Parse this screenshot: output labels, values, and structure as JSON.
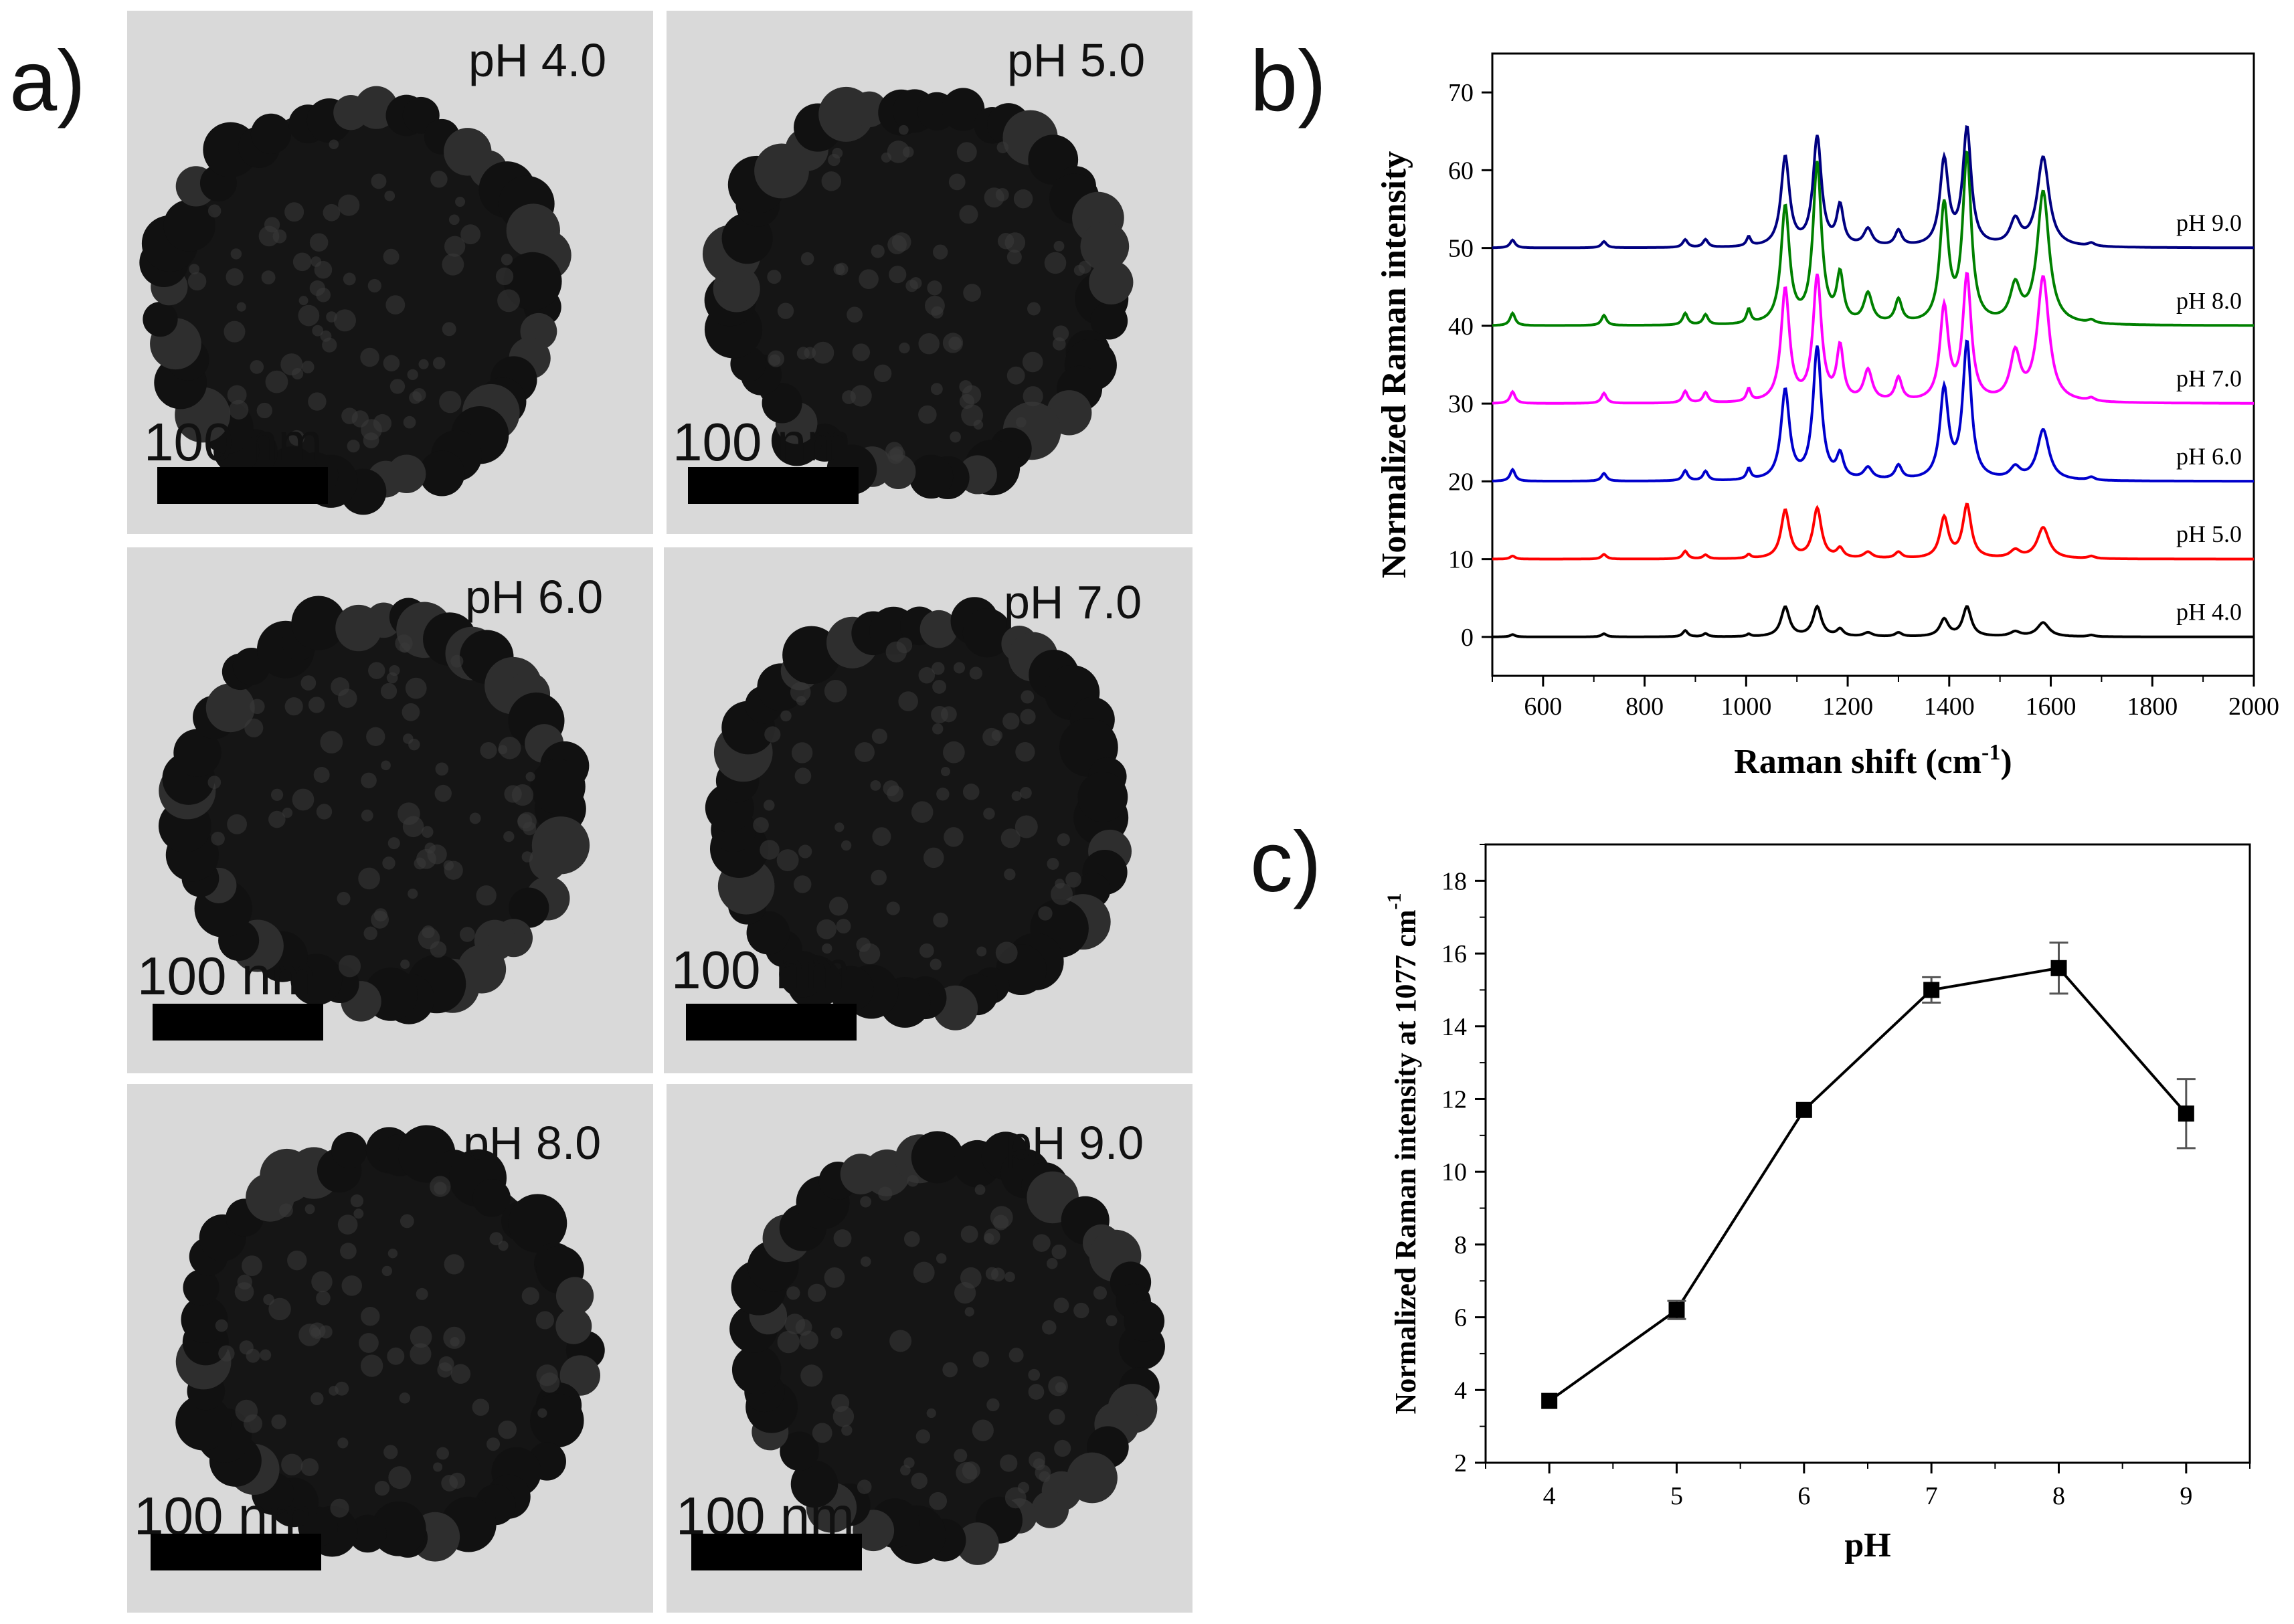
{
  "panels": {
    "a": "a)",
    "b": "b)",
    "c": "c)"
  },
  "tem": {
    "scale_bar_label": "100 nm",
    "images": [
      {
        "label": "pH 4.0"
      },
      {
        "label": "pH 5.0"
      },
      {
        "label": "pH 6.0"
      },
      {
        "label": "pH 7.0"
      },
      {
        "label": "pH 8.0"
      },
      {
        "label": "pH 9.0"
      }
    ]
  },
  "chart_data": [
    {
      "id": "b",
      "type": "line",
      "title": "",
      "xlabel": "Raman shift (cm",
      "xlabel_sup": "-1",
      "xlabel_close": ")",
      "ylabel": "Normalized Raman intensity",
      "xlim": [
        500,
        2000
      ],
      "ylim": [
        -5,
        75
      ],
      "xticks": [
        600,
        800,
        1000,
        1200,
        1400,
        1600,
        1800,
        2000
      ],
      "yticks": [
        0,
        10,
        20,
        30,
        40,
        50,
        60,
        70
      ],
      "peaks_cm-1": [
        540,
        720,
        880,
        920,
        1005,
        1077,
        1140,
        1185,
        1240,
        1300,
        1390,
        1435,
        1530,
        1585,
        1680
      ],
      "series": [
        {
          "name": "pH 4.0",
          "color": "#000000",
          "offset": 0,
          "peak_heights": [
            0.3,
            0.4,
            0.8,
            0.4,
            0.3,
            3.8,
            3.8,
            0.9,
            0.5,
            0.5,
            2.2,
            3.8,
            0.6,
            1.8,
            0.2
          ]
        },
        {
          "name": "pH 5.0",
          "color": "#ff0000",
          "offset": 10,
          "peak_heights": [
            0.4,
            0.6,
            1.0,
            0.5,
            0.5,
            6.2,
            6.4,
            1.2,
            0.8,
            0.8,
            5.2,
            6.8,
            1.0,
            4.0,
            0.3
          ]
        },
        {
          "name": "pH 6.0",
          "color": "#0000cc",
          "offset": 20,
          "peak_heights": [
            1.5,
            1.0,
            1.3,
            1.2,
            1.4,
            11.5,
            17.0,
            3.0,
            1.5,
            1.8,
            11.5,
            17.5,
            1.5,
            6.5,
            0.4
          ]
        },
        {
          "name": "pH 7.0",
          "color": "#ff00ff",
          "offset": 30,
          "peak_heights": [
            1.5,
            1.3,
            1.5,
            1.3,
            1.6,
            14.5,
            16.0,
            6.8,
            4.0,
            3.0,
            12.0,
            16.0,
            6.0,
            16.0,
            0.4
          ]
        },
        {
          "name": "pH 8.0",
          "color": "#008000",
          "offset": 40,
          "peak_heights": [
            1.6,
            1.3,
            1.5,
            1.3,
            1.8,
            15.0,
            20.5,
            6.0,
            3.8,
            3.0,
            15.0,
            21.5,
            4.6,
            17.0,
            0.4
          ]
        },
        {
          "name": "pH 9.0",
          "color": "#000080",
          "offset": 50,
          "peak_heights": [
            1.0,
            0.8,
            1.0,
            1.0,
            1.2,
            11.5,
            14.0,
            5.0,
            2.2,
            2.0,
            11.0,
            15.0,
            3.2,
            11.5,
            0.4
          ]
        }
      ]
    },
    {
      "id": "c",
      "type": "line",
      "title": "",
      "xlabel": "pH",
      "ylabel": "Normalized Raman intensity at 1077 cm",
      "ylabel_sup": "-1",
      "xlim": [
        3.5,
        9.5
      ],
      "ylim": [
        2,
        19
      ],
      "xticks": [
        4,
        5,
        6,
        7,
        8,
        9
      ],
      "yticks": [
        2,
        4,
        6,
        8,
        10,
        12,
        14,
        16,
        18
      ],
      "x": [
        4,
        5,
        6,
        7,
        8,
        9
      ],
      "y": [
        3.7,
        6.2,
        11.7,
        15.0,
        15.6,
        11.6
      ],
      "yerr": [
        0.1,
        0.25,
        0.1,
        0.35,
        0.7,
        0.95
      ],
      "marker": "square"
    }
  ]
}
